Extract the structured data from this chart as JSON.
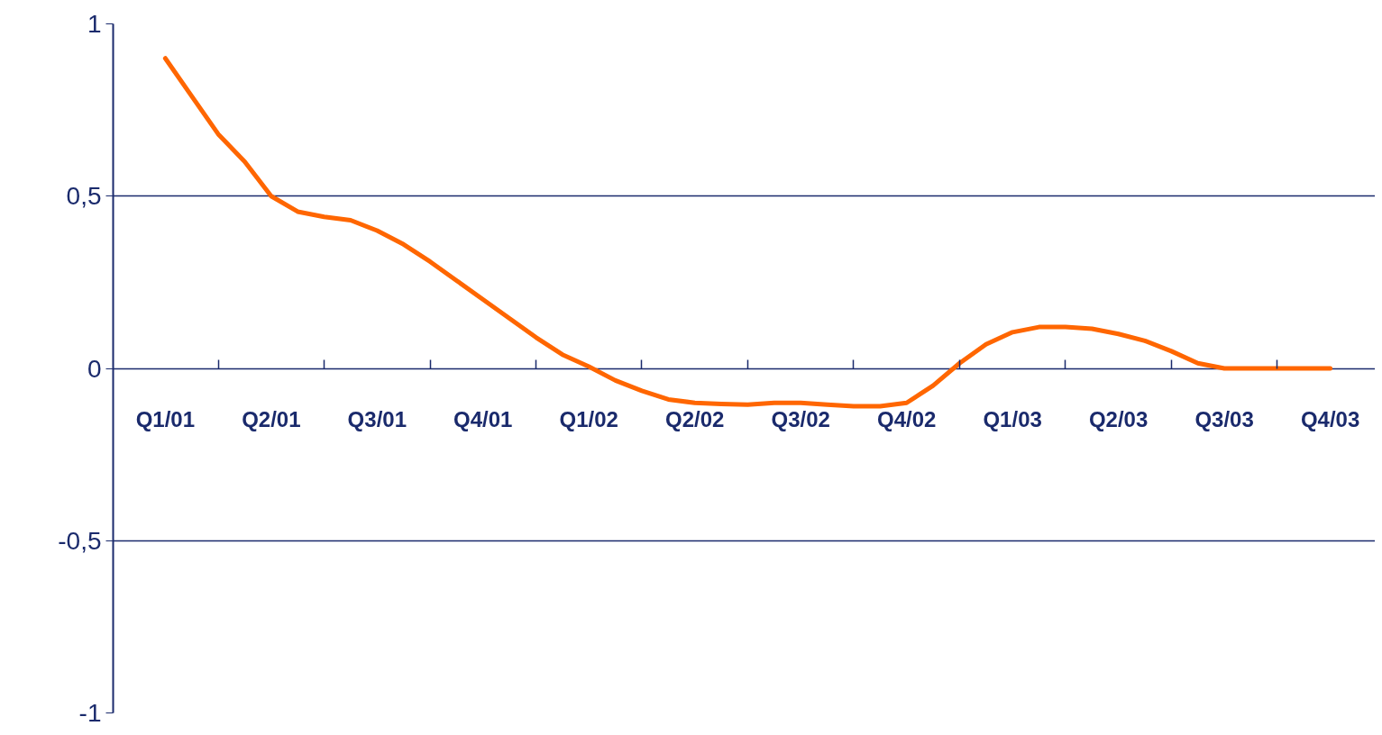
{
  "chart_data": {
    "type": "line",
    "categories": [
      "Q1/01",
      null,
      null,
      null,
      "Q2/01",
      null,
      null,
      null,
      "Q3/01",
      null,
      null,
      null,
      "Q4/01",
      null,
      null,
      null,
      "Q1/02",
      null,
      null,
      null,
      "Q2/02",
      null,
      null,
      null,
      "Q3/02",
      null,
      null,
      null,
      "Q4/02",
      null,
      null,
      null,
      "Q1/03",
      null,
      null,
      null,
      "Q2/03",
      null,
      null,
      null,
      "Q3/03",
      null,
      null,
      null,
      "Q4/03"
    ],
    "series": [
      {
        "color": "#ff6600",
        "values": [
          0.9,
          0.79,
          0.68,
          0.6,
          0.5,
          0.455,
          0.44,
          0.43,
          0.4,
          0.36,
          0.31,
          0.255,
          0.2,
          0.145,
          0.09,
          0.04,
          0.005,
          -0.035,
          -0.065,
          -0.09,
          -0.1,
          -0.103,
          -0.105,
          -0.1,
          -0.1,
          -0.105,
          -0.11,
          -0.11,
          -0.1,
          -0.05,
          0.015,
          0.07,
          0.105,
          0.12,
          0.12,
          0.115,
          0.1,
          0.08,
          0.05,
          0.015,
          0.0,
          0.0,
          0.0,
          0.0,
          0.0
        ]
      }
    ],
    "ylim": [
      -1,
      1
    ],
    "yticks": [
      -1,
      {
        "value": -0.5,
        "label": "-0,5"
      },
      0,
      {
        "value": 0.5,
        "label": "0,5"
      },
      1
    ],
    "grid": "y",
    "line_style": "solid",
    "marker": "none"
  }
}
